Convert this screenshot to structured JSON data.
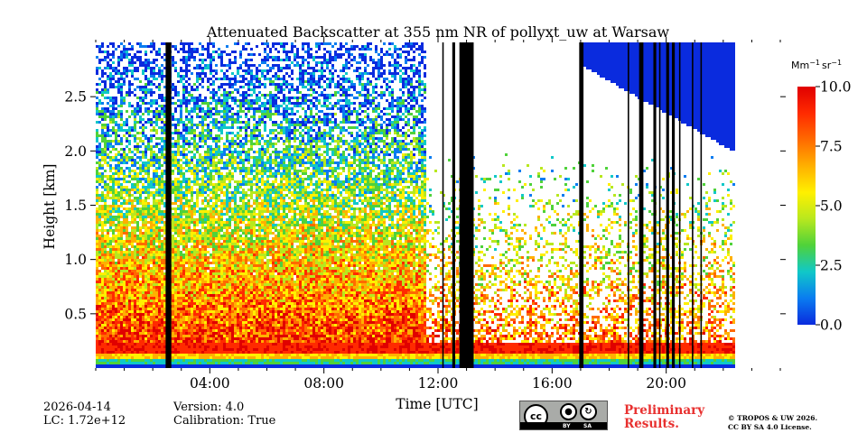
{
  "chart_data": {
    "type": "heatmap",
    "title": "Attenuated Backscatter at 355 nm NR of pollyxt_uw at Warsaw",
    "xlabel": "Time [UTC]",
    "ylabel": "Height [km]",
    "x_range_hours": [
      0,
      24
    ],
    "y_range_km": [
      0,
      3.0
    ],
    "x_ticks": [
      {
        "value": 4,
        "label": "04:00"
      },
      {
        "value": 8,
        "label": "08:00"
      },
      {
        "value": 12,
        "label": "12:00"
      },
      {
        "value": 16,
        "label": "16:00"
      },
      {
        "value": 20,
        "label": "20:00"
      }
    ],
    "y_ticks": [
      {
        "value": 0.5,
        "label": "0.5"
      },
      {
        "value": 1.0,
        "label": "1.0"
      },
      {
        "value": 1.5,
        "label": "1.5"
      },
      {
        "value": 2.0,
        "label": "2.0"
      },
      {
        "value": 2.5,
        "label": "2.5"
      }
    ],
    "colorbar": {
      "unit_base": "Mm",
      "unit_exp1": "−1",
      "unit_mid": "sr",
      "unit_exp2": "−1",
      "range": [
        0,
        10
      ],
      "ticks": [
        {
          "value": 0.0,
          "label": "0.0"
        },
        {
          "value": 2.5,
          "label": "2.5"
        },
        {
          "value": 5.0,
          "label": "5.0"
        },
        {
          "value": 7.5,
          "label": "7.5"
        },
        {
          "value": 10.0,
          "label": "10.0"
        }
      ],
      "colors": [
        "#0a2bde",
        "#0a7cf0",
        "#10c8c8",
        "#4fd23a",
        "#b8e81e",
        "#fff000",
        "#ffb000",
        "#ff6a00",
        "#ff2a00",
        "#e00000"
      ]
    },
    "data_end_hour": 22.35,
    "no_data_gaps_hours": [
      [
        2.45,
        2.65
      ],
      [
        12.15,
        12.2
      ],
      [
        12.5,
        12.6
      ],
      [
        12.75,
        13.25
      ],
      [
        16.95,
        17.1
      ],
      [
        18.65,
        18.7
      ],
      [
        19.05,
        19.2
      ],
      [
        19.55,
        19.65
      ],
      [
        19.75,
        19.8
      ],
      [
        20.0,
        20.1
      ],
      [
        20.2,
        20.3
      ],
      [
        20.45,
        20.5
      ],
      [
        20.9,
        20.95
      ],
      [
        21.2,
        21.25
      ]
    ],
    "high_cloud_cover": {
      "from_hour": 17.0,
      "to_hour": 22.35,
      "base_km_min": 2.0,
      "base_km_max": 2.8,
      "value": 0.3
    }
  },
  "footer": {
    "date": "2026-04-14",
    "lc": "LC: 1.72e+12",
    "version": "Version: 4.0",
    "calibration": "Calibration: True",
    "preliminary_line1": "Preliminary",
    "preliminary_line2": "Results.",
    "copyright_line1": "© TROPOS & UW 2026.",
    "copyright_line2": "CC BY SA 4.0 License.",
    "cc_logo": {
      "cc": "cc",
      "by": "BY",
      "sa": "SA"
    }
  }
}
